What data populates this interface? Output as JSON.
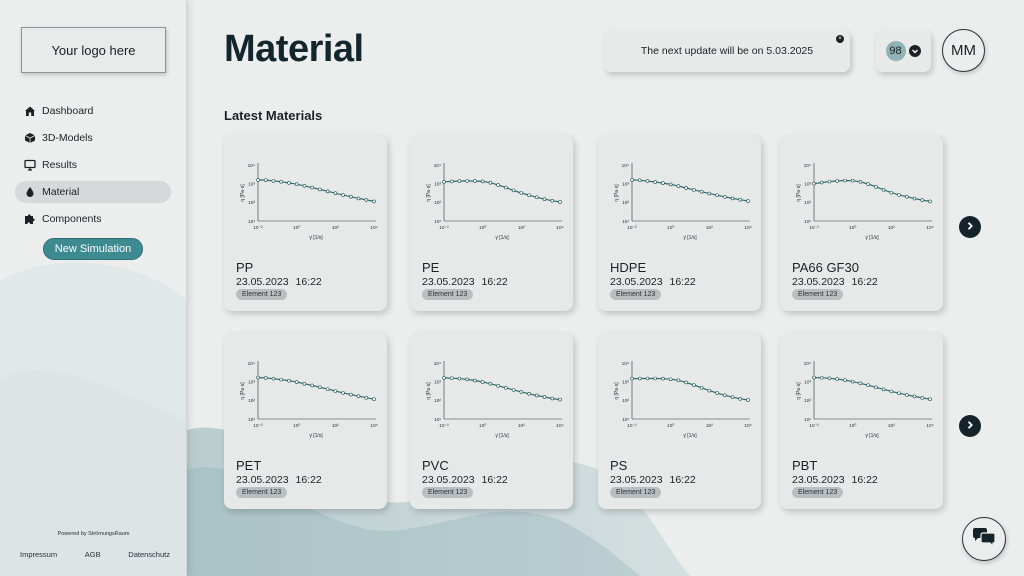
{
  "sidebar": {
    "logo_text": "Your logo here",
    "nav": [
      {
        "label": "Dashboard",
        "icon": "home-icon",
        "active": false
      },
      {
        "label": "3D-Models",
        "icon": "cube-icon",
        "active": false
      },
      {
        "label": "Results",
        "icon": "monitor-icon",
        "active": false
      },
      {
        "label": "Material",
        "icon": "drop-icon",
        "active": true
      },
      {
        "label": "Components",
        "icon": "puzzle-icon",
        "active": false
      }
    ],
    "new_simulation_label": "New Simulation",
    "powered_by": "Powered by StrömungsRaum",
    "footer_links": [
      "Impressum",
      "AGB",
      "Datenschutz"
    ]
  },
  "header": {
    "title": "Material",
    "notice_text": "The next update will be on 5.03.2025",
    "notification_count": "98",
    "avatar_initials": "MM"
  },
  "section_title": "Latest Materials",
  "chart_axes": {
    "y_label": "η [Pa·s]",
    "x_label": "γ̇ [1/s]",
    "x_ticks": [
      "10⁻²",
      "10⁰",
      "10²",
      "10⁴"
    ],
    "y_ticks": [
      "10⁴",
      "10³",
      "10²",
      "10¹"
    ]
  },
  "materials": [
    {
      "name": "PP",
      "date": "23.05.2023",
      "time": "16:22",
      "tag": "Element 123"
    },
    {
      "name": "PE",
      "date": "23.05.2023",
      "time": "16:22",
      "tag": "Element 123"
    },
    {
      "name": "HDPE",
      "date": "23.05.2023",
      "time": "16:22",
      "tag": "Element 123"
    },
    {
      "name": "PA66 GF30",
      "date": "23.05.2023",
      "time": "16:22",
      "tag": "Element 123"
    },
    {
      "name": "PET",
      "date": "23.05.2023",
      "time": "16:22",
      "tag": "Element 123"
    },
    {
      "name": "PVC",
      "date": "23.05.2023",
      "time": "16:22",
      "tag": "Element 123"
    },
    {
      "name": "PS",
      "date": "23.05.2023",
      "time": "16:22",
      "tag": "Element 123"
    },
    {
      "name": "PBT",
      "date": "23.05.2023",
      "time": "16:22",
      "tag": "Element 123"
    }
  ],
  "chart_data": [
    {
      "type": "line",
      "series": [
        {
          "x": [
            -2,
            -1.6,
            -1.2,
            -0.8,
            -0.4,
            0,
            0.4,
            0.8,
            1.2,
            1.6,
            2,
            2.4,
            2.8,
            3.2,
            3.6,
            4
          ],
          "y": [
            3.2,
            3.19,
            3.15,
            3.1,
            3.04,
            2.97,
            2.88,
            2.79,
            2.69,
            2.59,
            2.49,
            2.39,
            2.3,
            2.21,
            2.13,
            2.05
          ]
        }
      ],
      "xlim": [
        -2,
        4
      ],
      "ylim": [
        1,
        4
      ]
    },
    {
      "type": "line",
      "series": [
        {
          "x": [
            -2,
            -1.6,
            -1.2,
            -0.8,
            -0.4,
            0,
            0.4,
            0.8,
            1.2,
            1.6,
            2,
            2.4,
            2.8,
            3.2,
            3.6,
            4
          ],
          "y": [
            3.1,
            3.12,
            3.14,
            3.15,
            3.14,
            3.12,
            3.05,
            2.93,
            2.79,
            2.64,
            2.5,
            2.38,
            2.27,
            2.17,
            2.09,
            2.02
          ]
        }
      ],
      "xlim": [
        -2,
        4
      ],
      "ylim": [
        1,
        4
      ]
    },
    {
      "type": "line",
      "series": [
        {
          "x": [
            -2,
            -1.6,
            -1.2,
            -0.8,
            -0.4,
            0,
            0.4,
            0.8,
            1.2,
            1.6,
            2,
            2.4,
            2.8,
            3.2,
            3.6,
            4
          ],
          "y": [
            3.2,
            3.18,
            3.14,
            3.09,
            3.03,
            2.96,
            2.87,
            2.77,
            2.67,
            2.57,
            2.47,
            2.38,
            2.29,
            2.21,
            2.14,
            2.07
          ]
        }
      ],
      "xlim": [
        -2,
        4
      ],
      "ylim": [
        1,
        4
      ]
    },
    {
      "type": "line",
      "series": [
        {
          "x": [
            -2,
            -1.6,
            -1.2,
            -0.8,
            -0.4,
            0,
            0.4,
            0.8,
            1.2,
            1.6,
            2,
            2.4,
            2.8,
            3.2,
            3.6,
            4
          ],
          "y": [
            3.0,
            3.06,
            3.11,
            3.15,
            3.17,
            3.16,
            3.1,
            2.98,
            2.83,
            2.67,
            2.52,
            2.4,
            2.3,
            2.2,
            2.12,
            2.05
          ]
        }
      ],
      "xlim": [
        -2,
        4
      ],
      "ylim": [
        1,
        4
      ]
    },
    {
      "type": "line",
      "series": [
        {
          "x": [
            -2,
            -1.6,
            -1.2,
            -0.8,
            -0.4,
            0,
            0.4,
            0.8,
            1.2,
            1.6,
            2,
            2.4,
            2.8,
            3.2,
            3.6,
            4
          ],
          "y": [
            3.22,
            3.2,
            3.16,
            3.11,
            3.05,
            2.98,
            2.89,
            2.8,
            2.7,
            2.6,
            2.5,
            2.4,
            2.31,
            2.22,
            2.14,
            2.06
          ]
        }
      ],
      "xlim": [
        -2,
        4
      ],
      "ylim": [
        1,
        4
      ]
    },
    {
      "type": "line",
      "series": [
        {
          "x": [
            -2,
            -1.6,
            -1.2,
            -0.8,
            -0.4,
            0,
            0.4,
            0.8,
            1.2,
            1.6,
            2,
            2.4,
            2.8,
            3.2,
            3.6,
            4
          ],
          "y": [
            3.2,
            3.19,
            3.16,
            3.12,
            3.06,
            2.98,
            2.89,
            2.78,
            2.67,
            2.56,
            2.45,
            2.35,
            2.26,
            2.18,
            2.1,
            2.04
          ]
        }
      ],
      "xlim": [
        -2,
        4
      ],
      "ylim": [
        1,
        4
      ]
    },
    {
      "type": "line",
      "series": [
        {
          "x": [
            -2,
            -1.6,
            -1.2,
            -0.8,
            -0.4,
            0,
            0.4,
            0.8,
            1.2,
            1.6,
            2,
            2.4,
            2.8,
            3.2,
            3.6,
            4
          ],
          "y": [
            3.16,
            3.17,
            3.17,
            3.17,
            3.16,
            3.13,
            3.07,
            2.96,
            2.82,
            2.67,
            2.52,
            2.39,
            2.27,
            2.17,
            2.08,
            2.02
          ]
        }
      ],
      "xlim": [
        -2,
        4
      ],
      "ylim": [
        1,
        4
      ]
    },
    {
      "type": "line",
      "series": [
        {
          "x": [
            -2,
            -1.6,
            -1.2,
            -0.8,
            -0.4,
            0,
            0.4,
            0.8,
            1.2,
            1.6,
            2,
            2.4,
            2.8,
            3.2,
            3.6,
            4
          ],
          "y": [
            3.22,
            3.21,
            3.18,
            3.14,
            3.08,
            3.0,
            2.91,
            2.81,
            2.7,
            2.59,
            2.48,
            2.38,
            2.29,
            2.21,
            2.13,
            2.06
          ]
        }
      ],
      "xlim": [
        -2,
        4
      ],
      "ylim": [
        1,
        4
      ]
    }
  ],
  "colors": {
    "accent": "#3d8a91",
    "line": "#2b6e73",
    "dark": "#14232a"
  }
}
